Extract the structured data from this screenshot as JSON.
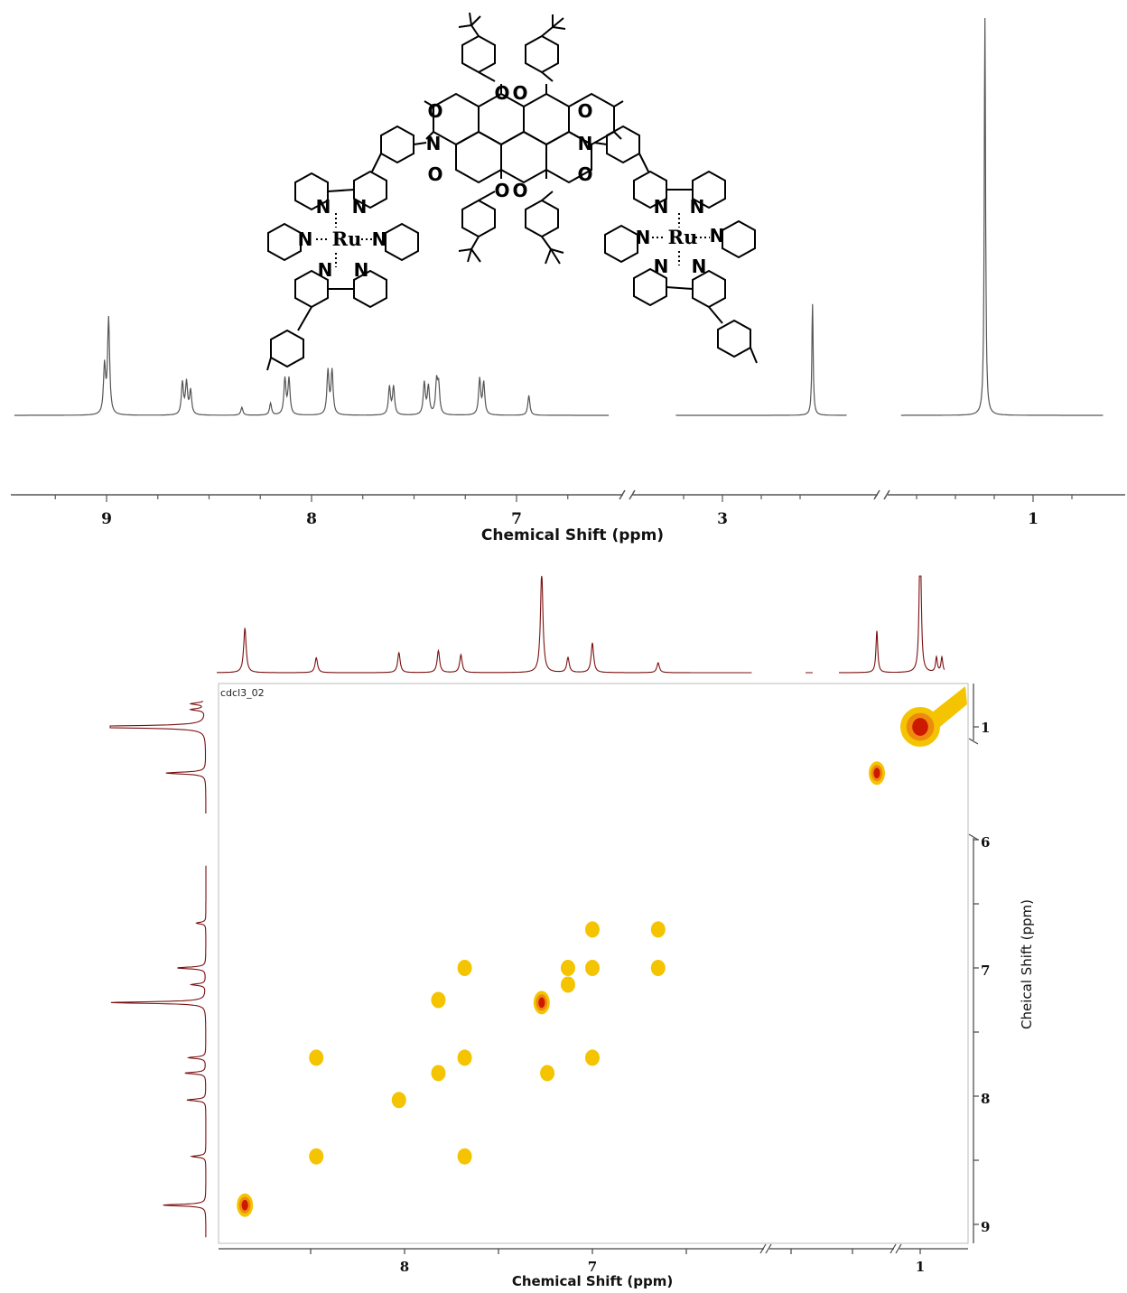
{
  "chart_data": [
    {
      "type": "line",
      "title": "",
      "xlabel": "Chemical Shift (ppm)",
      "ylabel": "",
      "axis_reversed": true,
      "axis_breaks": [
        [
          6.5,
          3.0
        ],
        [
          2.5,
          1.5
        ]
      ],
      "xticks": [
        "9",
        "8",
        "7",
        "3",
        "1"
      ],
      "series": [
        {
          "peaks_ppm": [
            9.01,
            8.99,
            8.63,
            8.61,
            8.59,
            8.34,
            8.2,
            8.13,
            8.11,
            7.92,
            7.9,
            7.62,
            7.6,
            7.45,
            7.43,
            7.39,
            7.38,
            7.18,
            7.16,
            6.94,
            2.42,
            1.31
          ],
          "relative_heights": [
            0.12,
            0.24,
            0.08,
            0.08,
            0.06,
            0.02,
            0.03,
            0.09,
            0.09,
            0.11,
            0.11,
            0.07,
            0.07,
            0.08,
            0.07,
            0.08,
            0.07,
            0.09,
            0.08,
            0.05,
            0.28,
            1.0
          ]
        }
      ]
    },
    {
      "type": "heatmap",
      "title": "",
      "dataset_label": "cdcl3_02",
      "xlabel": "Chemical Shift (ppm)",
      "ylabel": "Cheical Shift (ppm)",
      "xticks": [
        "8",
        "7",
        "1"
      ],
      "yticks": [
        "1",
        "6",
        "7",
        "8",
        "9"
      ],
      "cross_peaks_ppm": [
        {
          "x": 8.85,
          "y": 8.85,
          "i": "high"
        },
        {
          "x": 8.47,
          "y": 8.47,
          "i": "med"
        },
        {
          "x": 8.47,
          "y": 7.7,
          "i": "med"
        },
        {
          "x": 8.03,
          "y": 8.03,
          "i": "med"
        },
        {
          "x": 7.82,
          "y": 7.25,
          "i": "med"
        },
        {
          "x": 7.82,
          "y": 7.82,
          "i": "med"
        },
        {
          "x": 7.68,
          "y": 7.0,
          "i": "med"
        },
        {
          "x": 7.68,
          "y": 7.7,
          "i": "med"
        },
        {
          "x": 7.68,
          "y": 8.47,
          "i": "med"
        },
        {
          "x": 7.27,
          "y": 7.27,
          "i": "high"
        },
        {
          "x": 7.24,
          "y": 7.82,
          "i": "med"
        },
        {
          "x": 7.13,
          "y": 7.0,
          "i": "med"
        },
        {
          "x": 7.13,
          "y": 7.13,
          "i": "med"
        },
        {
          "x": 7.0,
          "y": 6.7,
          "i": "med"
        },
        {
          "x": 7.0,
          "y": 7.0,
          "i": "med"
        },
        {
          "x": 7.0,
          "y": 7.7,
          "i": "med"
        },
        {
          "x": 6.65,
          "y": 6.7,
          "i": "low"
        },
        {
          "x": 6.65,
          "y": 7.0,
          "i": "med"
        },
        {
          "x": 1.32,
          "y": 1.32,
          "i": "high"
        },
        {
          "x": 1.0,
          "y": 1.0,
          "i": "max"
        }
      ]
    }
  ],
  "structure": {
    "atom_labels": [
      "O",
      "O",
      "O",
      "O",
      "N",
      "N",
      "O",
      "O",
      "O",
      "O",
      "N",
      "N",
      "N",
      "N",
      "N",
      "N",
      "N",
      "N",
      "N",
      "N",
      "N",
      "N"
    ],
    "metal_label": "Ru"
  },
  "colors": {
    "spectrum": "#555555",
    "projection": "#7a1010",
    "contour_low": "#f5c400",
    "contour_mid": "#ee8a10",
    "contour_high": "#cc1a00"
  }
}
